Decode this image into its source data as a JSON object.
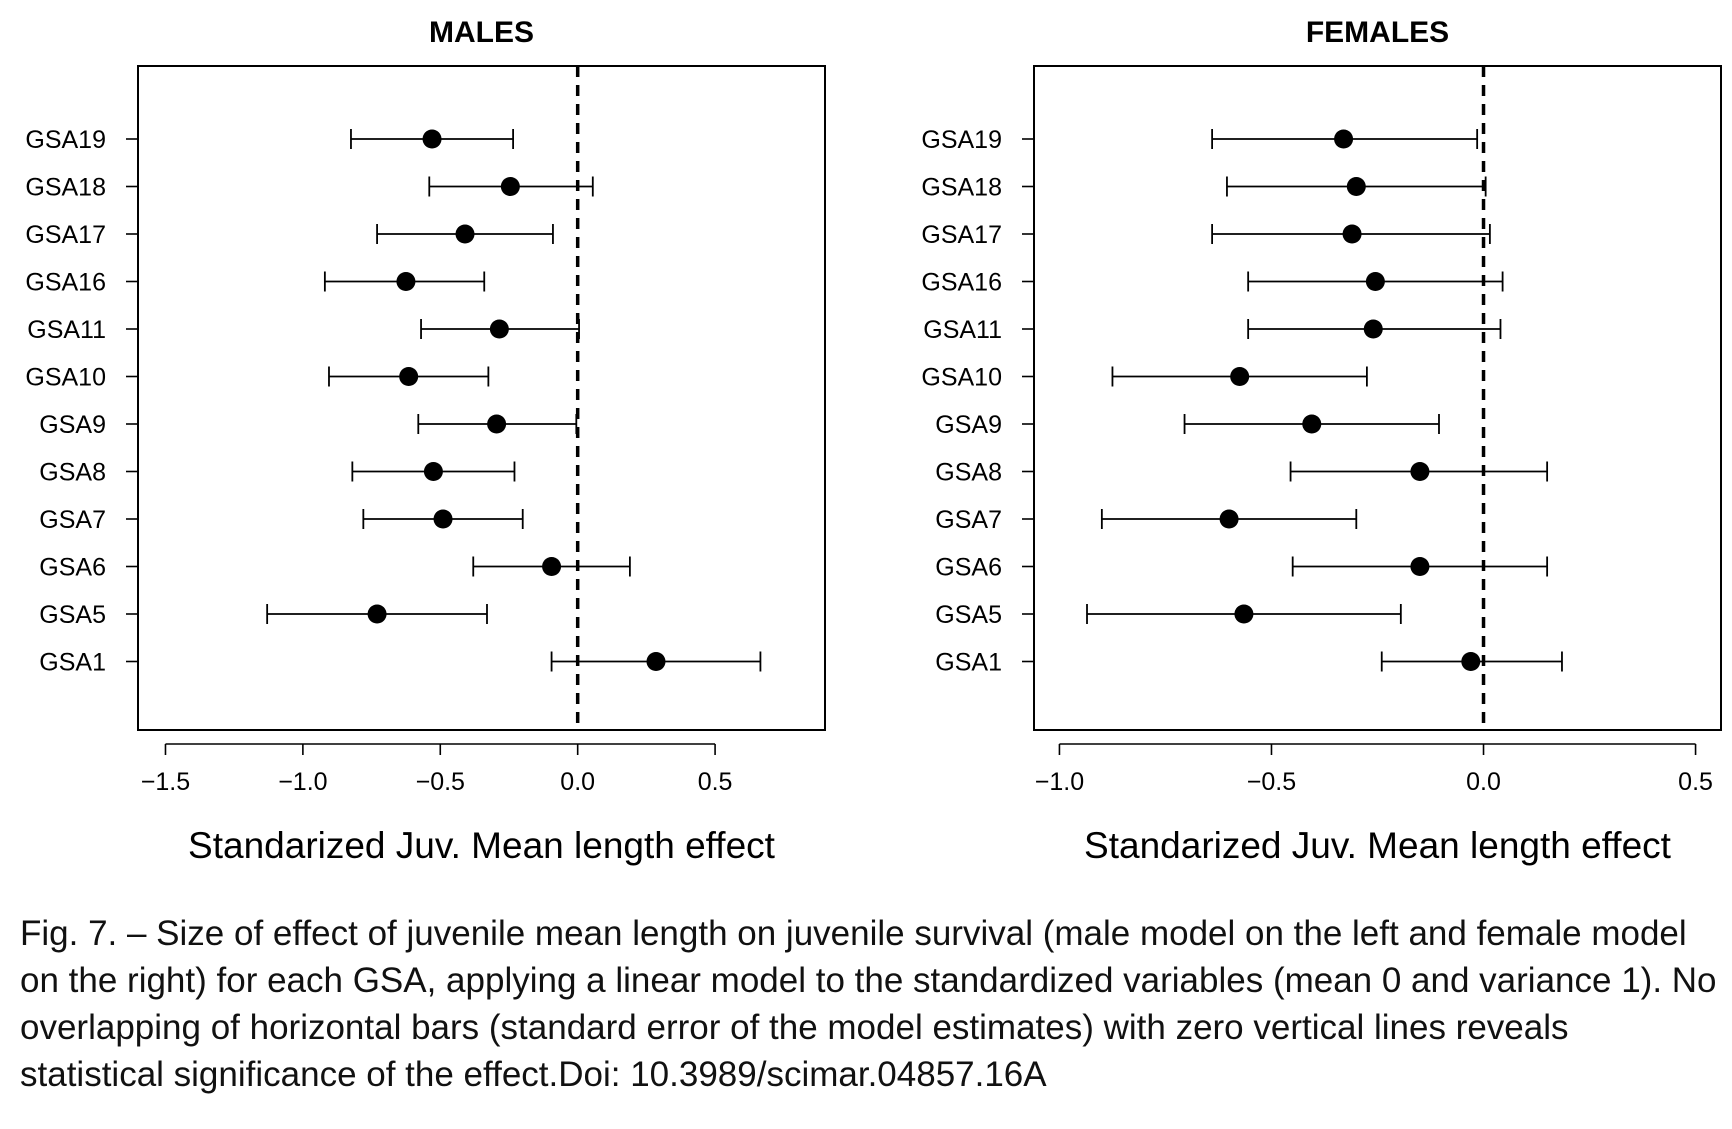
{
  "chart_data": [
    {
      "type": "scatter",
      "title": "MALES",
      "xlabel": "Standarized Juv. Mean length effect",
      "ylabel": "",
      "categories": [
        "GSA19",
        "GSA18",
        "GSA17",
        "GSA16",
        "GSA11",
        "GSA10",
        "GSA9",
        "GSA8",
        "GSA7",
        "GSA6",
        "GSA5",
        "GSA1"
      ],
      "values": [
        -0.53,
        -0.245,
        -0.41,
        -0.625,
        -0.285,
        -0.615,
        -0.295,
        -0.525,
        -0.49,
        -0.095,
        -0.73,
        0.285
      ],
      "lower": [
        -0.825,
        -0.54,
        -0.73,
        -0.92,
        -0.57,
        -0.905,
        -0.58,
        -0.82,
        -0.78,
        -0.38,
        -1.13,
        -0.095
      ],
      "upper": [
        -0.235,
        0.055,
        -0.09,
        -0.34,
        0.005,
        -0.325,
        -0.005,
        -0.23,
        -0.2,
        0.19,
        -0.33,
        0.665
      ],
      "xlim": [
        -1.6,
        0.9
      ],
      "xticks": [
        -1.5,
        -1.0,
        -0.5,
        0.0,
        0.5
      ],
      "xtick_labels": [
        "−1.5",
        "−1.0",
        "−0.5",
        "0.0",
        "0.5"
      ],
      "reference_line": 0,
      "grid": false
    },
    {
      "type": "scatter",
      "title": "FEMALES",
      "xlabel": "Standarized Juv. Mean length effect",
      "ylabel": "",
      "categories": [
        "GSA19",
        "GSA18",
        "GSA17",
        "GSA16",
        "GSA11",
        "GSA10",
        "GSA9",
        "GSA8",
        "GSA7",
        "GSA6",
        "GSA5",
        "GSA1"
      ],
      "values": [
        -0.33,
        -0.3,
        -0.31,
        -0.255,
        -0.26,
        -0.575,
        -0.405,
        -0.15,
        -0.6,
        -0.15,
        -0.565,
        -0.03
      ],
      "lower": [
        -0.64,
        -0.605,
        -0.64,
        -0.555,
        -0.555,
        -0.875,
        -0.705,
        -0.455,
        -0.9,
        -0.45,
        -0.935,
        -0.24
      ],
      "upper": [
        -0.015,
        0.005,
        0.015,
        0.045,
        0.04,
        -0.275,
        -0.105,
        0.15,
        -0.3,
        0.15,
        -0.195,
        0.185
      ],
      "xlim": [
        -1.06,
        0.56
      ],
      "xticks": [
        -1.0,
        -0.5,
        0.0,
        0.5
      ],
      "xtick_labels": [
        "−1.0",
        "−0.5",
        "0.0",
        "0.5"
      ],
      "reference_line": 0,
      "grid": false
    }
  ],
  "caption": "Fig. 7. – Size of effect of juvenile mean length on juvenile survival (male model on the left and female model on the right) for each GSA, applying a linear model to the standardized variables (mean 0 and variance 1). No overlapping of horizontal bars (standard error of the model estimates) with zero vertical lines reveals statistical significance of the effect.Doi: 10.3989/scimar.04857.16A"
}
